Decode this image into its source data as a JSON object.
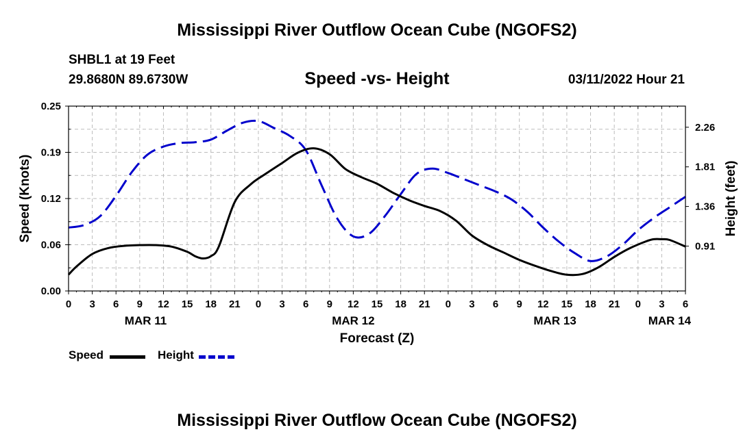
{
  "header": {
    "title": "Mississippi River Outflow Ocean Cube (NGOFS2)",
    "station": "SHBL1 at 19 Feet",
    "coords": "29.8680N  89.6730W",
    "subtitle": "Speed -vs- Height",
    "datetime": "03/11/2022 Hour 21"
  },
  "footer": {
    "title": "Mississippi River Outflow Ocean Cube (NGOFS2)"
  },
  "legend": {
    "speed_label": "Speed",
    "height_label": "Height"
  },
  "colors": {
    "speed": "#000000",
    "height": "#0000cc",
    "grid": "#bbbbbb"
  },
  "chart_data": {
    "type": "line",
    "title": "Speed -vs- Height",
    "xlabel": "Forecast (Z)",
    "ylabel_left": "Speed (Knots)",
    "ylabel_right": "Height (feet)",
    "x_unit": "hours from 2022-03-11 00Z",
    "xlim": [
      0,
      78
    ],
    "ylim_left": [
      0,
      0.25
    ],
    "ylim_right": [
      0.4,
      2.5
    ],
    "x_ticks": [
      0,
      3,
      6,
      9,
      12,
      15,
      18,
      21,
      24,
      27,
      30,
      33,
      36,
      39,
      42,
      45,
      48,
      51,
      54,
      57,
      60,
      63,
      66,
      69,
      72,
      75,
      78
    ],
    "x_tick_labels": [
      "0",
      "3",
      "6",
      "9",
      "12",
      "15",
      "18",
      "21",
      "0",
      "3",
      "6",
      "9",
      "12",
      "15",
      "18",
      "21",
      "0",
      "3",
      "6",
      "9",
      "12",
      "15",
      "18",
      "21",
      "0",
      "3",
      "6"
    ],
    "date_labels": [
      {
        "label": "MAR 11",
        "x": 9.75
      },
      {
        "label": "MAR 12",
        "x": 36
      },
      {
        "label": "MAR 13",
        "x": 61.5
      },
      {
        "label": "MAR 14",
        "x": 76
      }
    ],
    "y_left_ticks": [
      0,
      0.0625,
      0.125,
      0.1875,
      0.25
    ],
    "y_left_tick_labels": [
      "0.00",
      "0.06",
      "0.12",
      "0.19",
      "0.25"
    ],
    "y_right_ticks": [
      0.91,
      1.36,
      1.81,
      2.26
    ],
    "y_right_tick_labels": [
      "0.91",
      "1.36",
      "1.81",
      "2.26"
    ],
    "series": [
      {
        "name": "Speed",
        "axis": "left",
        "style": "solid",
        "x": [
          0,
          1,
          3,
          5,
          7,
          9,
          11,
          13,
          15,
          16,
          17,
          18,
          19,
          21,
          23,
          25,
          27,
          29,
          31,
          33,
          35,
          37,
          39,
          41,
          43,
          45,
          47,
          49,
          51,
          53,
          55,
          57,
          59,
          61,
          63,
          65,
          67,
          69,
          71,
          73,
          74,
          75,
          76,
          78
        ],
        "values": [
          0.022,
          0.033,
          0.05,
          0.058,
          0.061,
          0.062,
          0.062,
          0.06,
          0.053,
          0.047,
          0.044,
          0.047,
          0.06,
          0.12,
          0.144,
          0.159,
          0.173,
          0.187,
          0.193,
          0.185,
          0.165,
          0.154,
          0.145,
          0.133,
          0.123,
          0.115,
          0.108,
          0.095,
          0.075,
          0.062,
          0.052,
          0.042,
          0.034,
          0.027,
          0.022,
          0.023,
          0.032,
          0.046,
          0.058,
          0.067,
          0.07,
          0.07,
          0.069,
          0.06
        ]
      },
      {
        "name": "Height",
        "axis": "right",
        "style": "dashed",
        "x": [
          0,
          2,
          4,
          6,
          8,
          10,
          12,
          14,
          16,
          18,
          20,
          22,
          24,
          26,
          28,
          30,
          32,
          34,
          36,
          38,
          40,
          42,
          44,
          46,
          48,
          50,
          52,
          54,
          56,
          58,
          60,
          62,
          64,
          66,
          68,
          70,
          72,
          74,
          76,
          78
        ],
        "values": [
          1.12,
          1.15,
          1.25,
          1.48,
          1.75,
          1.95,
          2.04,
          2.08,
          2.09,
          2.12,
          2.22,
          2.31,
          2.33,
          2.25,
          2.16,
          2.0,
          1.6,
          1.22,
          1.02,
          1.05,
          1.25,
          1.5,
          1.73,
          1.79,
          1.74,
          1.67,
          1.6,
          1.53,
          1.44,
          1.3,
          1.12,
          0.96,
          0.83,
          0.74,
          0.79,
          0.92,
          1.09,
          1.23,
          1.35,
          1.47
        ]
      }
    ]
  }
}
